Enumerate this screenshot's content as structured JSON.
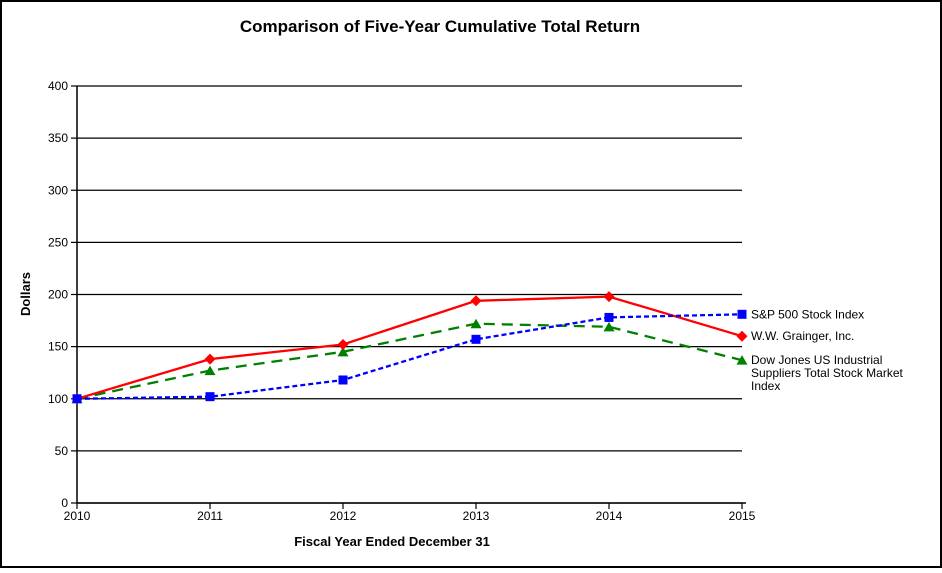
{
  "figure": {
    "background_color": "#ffffff",
    "frame_color": "#000000"
  },
  "chart_data": {
    "type": "line",
    "title": "Comparison of Five-Year Cumulative Total Return",
    "xlabel": "Fiscal Year Ended December 31",
    "ylabel": "Dollars",
    "x": [
      2010,
      2011,
      2012,
      2013,
      2014,
      2015
    ],
    "ylim": [
      0,
      400
    ],
    "ytick_step": 50,
    "yticks": [
      0,
      50,
      100,
      150,
      200,
      250,
      300,
      350,
      400
    ],
    "grid": true,
    "gridline_color": "#000000",
    "axis_color": "#000000",
    "legend_position": "right-of-line-ends",
    "series": [
      {
        "name": "S&P 500 Stock Index",
        "legend_lines": [
          "S&P 500 Stock Index"
        ],
        "color": "#0000ff",
        "line_style": "short-dash",
        "marker": "square",
        "values": [
          100,
          102,
          118,
          157,
          178,
          181
        ]
      },
      {
        "name": "W.W. Grainger, Inc.",
        "legend_lines": [
          "W.W. Grainger,  Inc."
        ],
        "color": "#ff0000",
        "line_style": "solid",
        "marker": "diamond",
        "values": [
          100,
          138,
          152,
          194,
          198,
          160
        ]
      },
      {
        "name": "Dow Jones US Industrial Suppliers Total Stock Market Index",
        "legend_lines": [
          "Dow Jones  US Industrial",
          "Suppliers  Total  Stock Market",
          "Index"
        ],
        "color": "#008000",
        "line_style": "long-dash",
        "marker": "triangle",
        "values": [
          100,
          127,
          145,
          172,
          169,
          137
        ]
      }
    ]
  }
}
